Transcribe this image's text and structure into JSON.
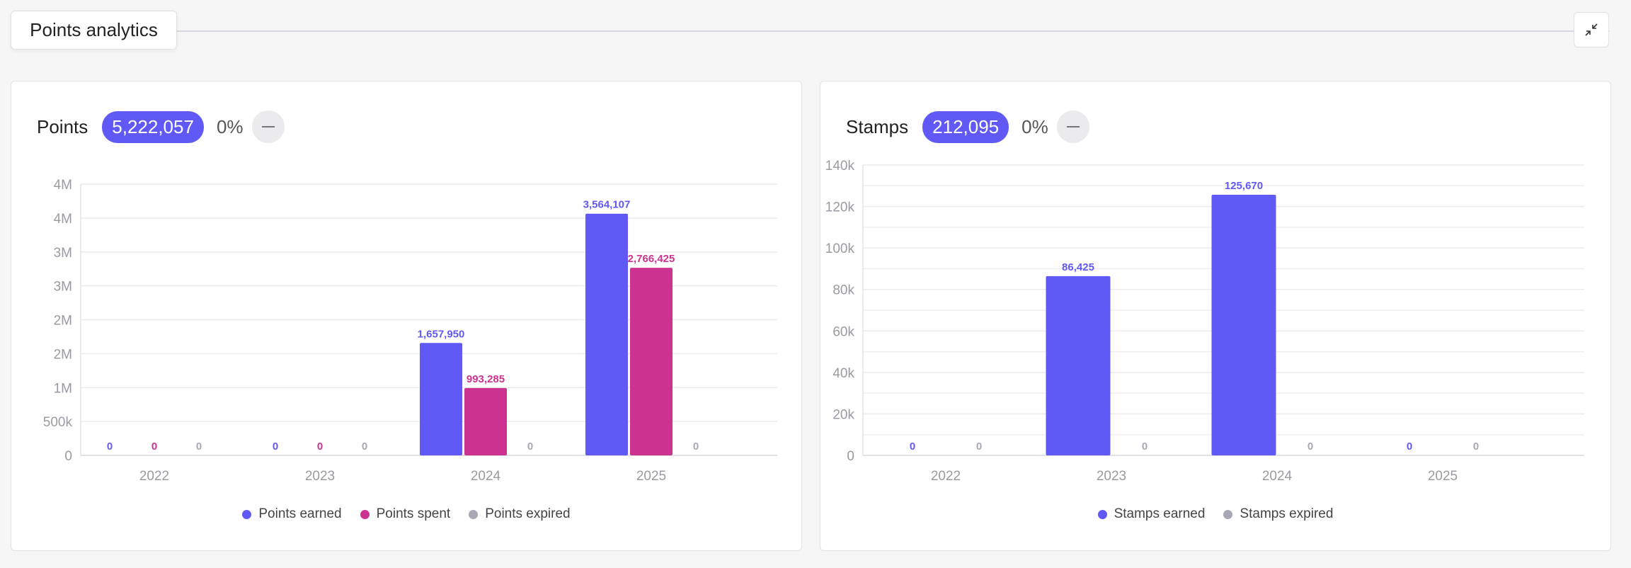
{
  "header": {
    "title": "Points analytics",
    "collapse_icon": "collapse-arrows-icon"
  },
  "colors": {
    "earned": "#6159f5",
    "spent": "#cc3391",
    "expired": "#a8a8b4"
  },
  "points": {
    "title": "Points",
    "total": "5,222,057",
    "change": "0%",
    "trend_icon": "dash-icon",
    "legend": [
      "Points earned",
      "Points spent",
      "Points expired"
    ]
  },
  "stamps": {
    "title": "Stamps",
    "total": "212,095",
    "change": "0%",
    "trend_icon": "dash-icon",
    "legend": [
      "Stamps earned",
      "Stamps expired"
    ]
  },
  "chart_data": [
    {
      "type": "bar",
      "title": "Points",
      "categories": [
        "2022",
        "2023",
        "2024",
        "2025"
      ],
      "ylim": [
        0,
        4000000
      ],
      "yticks": [
        0,
        500000,
        1000000,
        1500000,
        2000000,
        2500000,
        3000000,
        3500000,
        4000000
      ],
      "ytick_labels": [
        "0",
        "500k",
        "1M",
        "2M",
        "2M",
        "3M",
        "3M",
        "4M",
        "4M"
      ],
      "series": [
        {
          "name": "Points earned",
          "color": "#6159f5",
          "values": [
            0,
            0,
            1657950,
            3564107
          ],
          "labels": [
            "0",
            "0",
            "1,657,950",
            "3,564,107"
          ]
        },
        {
          "name": "Points spent",
          "color": "#cc3391",
          "values": [
            0,
            0,
            993285,
            2766425
          ],
          "labels": [
            "0",
            "0",
            "993,285",
            "2,766,425"
          ]
        },
        {
          "name": "Points expired",
          "color": "#a8a8b4",
          "values": [
            0,
            0,
            0,
            0
          ],
          "labels": [
            "0",
            "0",
            "0",
            "0"
          ]
        }
      ],
      "legend": "bottom",
      "grid": true
    },
    {
      "type": "bar",
      "title": "Stamps",
      "categories": [
        "2022",
        "2023",
        "2024",
        "2025"
      ],
      "ylim": [
        0,
        140000
      ],
      "yticks": [
        0,
        20000,
        40000,
        60000,
        80000,
        100000,
        120000,
        140000
      ],
      "ytick_labels": [
        "0",
        "20k",
        "40k",
        "60k",
        "80k",
        "100k",
        "120k",
        "140k"
      ],
      "minor_step": 10000,
      "series": [
        {
          "name": "Stamps earned",
          "color": "#6159f5",
          "values": [
            0,
            86425,
            125670,
            0
          ],
          "labels": [
            "0",
            "86,425",
            "125,670",
            "0"
          ]
        },
        {
          "name": "Stamps expired",
          "color": "#a8a8b4",
          "values": [
            0,
            0,
            0,
            0
          ],
          "labels": [
            "0",
            "0",
            "0",
            "0"
          ]
        }
      ],
      "legend": "bottom",
      "grid": true
    }
  ]
}
